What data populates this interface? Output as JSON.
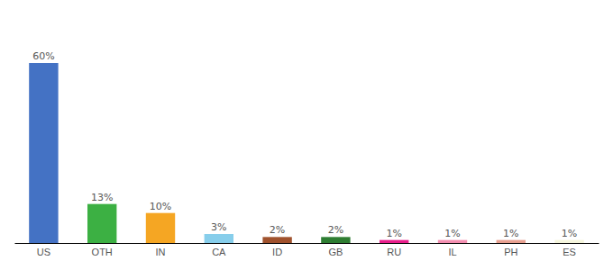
{
  "chart_data": {
    "type": "bar",
    "categories": [
      "US",
      "OTH",
      "IN",
      "CA",
      "ID",
      "GB",
      "RU",
      "IL",
      "PH",
      "ES"
    ],
    "values": [
      60,
      13,
      10,
      3,
      2,
      2,
      1,
      1,
      1,
      1
    ],
    "value_labels": [
      "60%",
      "13%",
      "10%",
      "3%",
      "2%",
      "2%",
      "1%",
      "1%",
      "1%",
      "1%"
    ],
    "colors": [
      "#4472c4",
      "#3cb043",
      "#f5a623",
      "#87ceeb",
      "#a0522d",
      "#2e7d32",
      "#e91e8c",
      "#f48fb1",
      "#e8a090",
      "#f5f5dc"
    ],
    "ylim": [
      0,
      75
    ],
    "data_labels": true,
    "tick_labels": "x"
  }
}
